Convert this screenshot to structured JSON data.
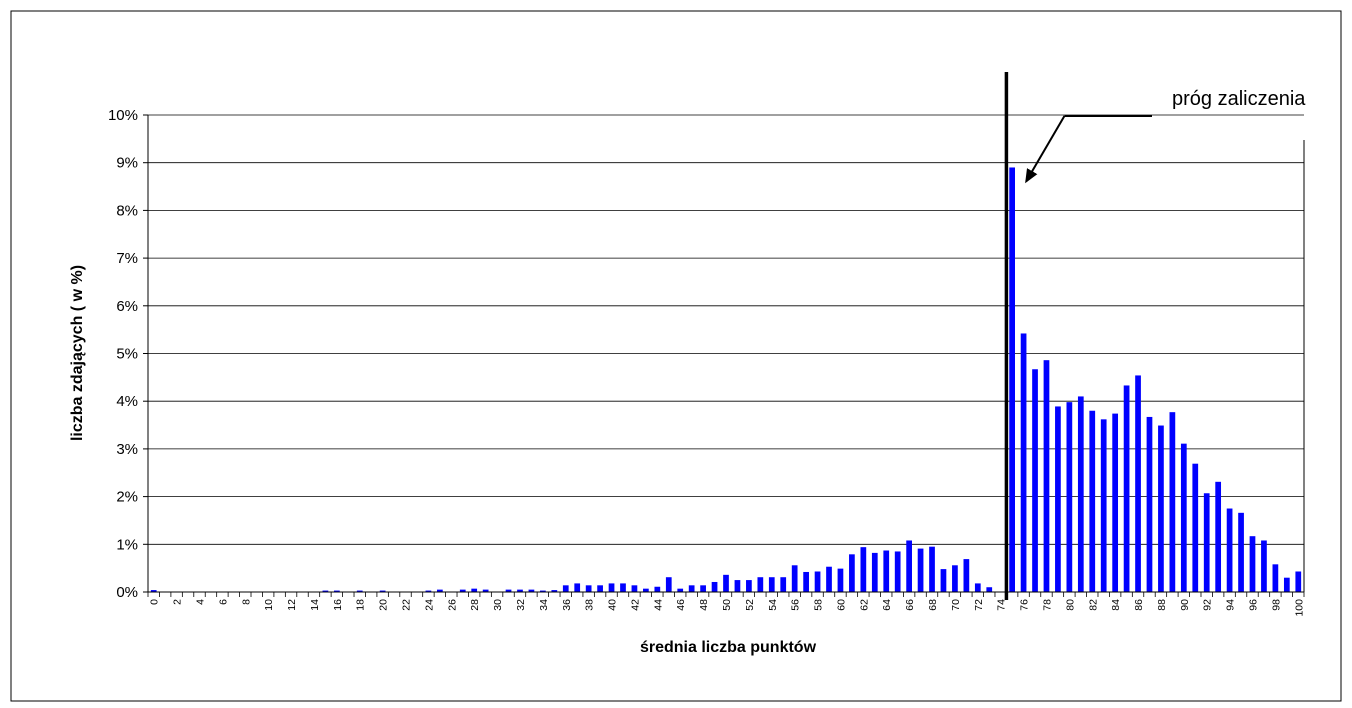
{
  "chart_data": {
    "type": "bar",
    "xlabel": "średnia liczba punktów",
    "ylabel": "liczba zdających ( w %)",
    "ylim": [
      0,
      10
    ],
    "y_ticks": [
      "0%",
      "1%",
      "2%",
      "3%",
      "4%",
      "5%",
      "6%",
      "7%",
      "8%",
      "9%",
      "10%"
    ],
    "grid": true,
    "bar_color": "#0000ff",
    "x": [
      0,
      1,
      2,
      3,
      4,
      5,
      6,
      7,
      8,
      9,
      10,
      11,
      12,
      13,
      14,
      15,
      16,
      17,
      18,
      19,
      20,
      21,
      22,
      23,
      24,
      25,
      26,
      27,
      28,
      29,
      30,
      31,
      32,
      33,
      34,
      35,
      36,
      37,
      38,
      39,
      40,
      41,
      42,
      43,
      44,
      45,
      46,
      47,
      48,
      49,
      50,
      51,
      52,
      53,
      54,
      55,
      56,
      57,
      58,
      59,
      60,
      61,
      62,
      63,
      64,
      65,
      66,
      67,
      68,
      69,
      70,
      71,
      72,
      73,
      74,
      75,
      76,
      77,
      78,
      79,
      80,
      81,
      82,
      83,
      84,
      85,
      86,
      87,
      88,
      89,
      90,
      91,
      92,
      93,
      94,
      95,
      96,
      97,
      98,
      99,
      100
    ],
    "x_tick_labels": [
      "0",
      "2",
      "4",
      "6",
      "8",
      "10",
      "12",
      "14",
      "16",
      "18",
      "20",
      "22",
      "24",
      "26",
      "28",
      "30",
      "32",
      "34",
      "36",
      "38",
      "40",
      "42",
      "44",
      "46",
      "48",
      "50",
      "52",
      "54",
      "56",
      "58",
      "60",
      "62",
      "64",
      "66",
      "68",
      "70",
      "72",
      "74",
      "76",
      "78",
      "80",
      "82",
      "84",
      "86",
      "88",
      "90",
      "92",
      "94",
      "96",
      "98",
      "100"
    ],
    "values": [
      0.04,
      0.01,
      0.01,
      0.01,
      0.01,
      0.01,
      0.01,
      0.01,
      0.01,
      0.01,
      0.01,
      0.01,
      0.01,
      0.01,
      0.01,
      0.03,
      0.03,
      0.01,
      0.03,
      0.01,
      0.03,
      0.01,
      0.01,
      0.01,
      0.03,
      0.05,
      0.01,
      0.05,
      0.07,
      0.05,
      0.01,
      0.05,
      0.05,
      0.05,
      0.03,
      0.04,
      0.14,
      0.18,
      0.14,
      0.14,
      0.18,
      0.18,
      0.14,
      0.07,
      0.11,
      0.31,
      0.07,
      0.14,
      0.14,
      0.21,
      0.36,
      0.25,
      0.25,
      0.31,
      0.31,
      0.31,
      0.56,
      0.42,
      0.43,
      0.53,
      0.49,
      0.79,
      0.94,
      0.82,
      0.87,
      0.85,
      1.08,
      0.91,
      0.95,
      0.48,
      0.56,
      0.69,
      0.18,
      0.1,
      0.0,
      8.9,
      5.42,
      4.67,
      4.86,
      3.89,
      3.98,
      4.1,
      3.8,
      3.62,
      3.74,
      4.33,
      4.54,
      3.67,
      3.49,
      3.77,
      3.11,
      2.69,
      2.07,
      2.31,
      1.75,
      1.66,
      1.17,
      1.08,
      0.58,
      0.3,
      0.43
    ],
    "threshold": {
      "x": 75,
      "label": "próg zaliczenia"
    }
  }
}
